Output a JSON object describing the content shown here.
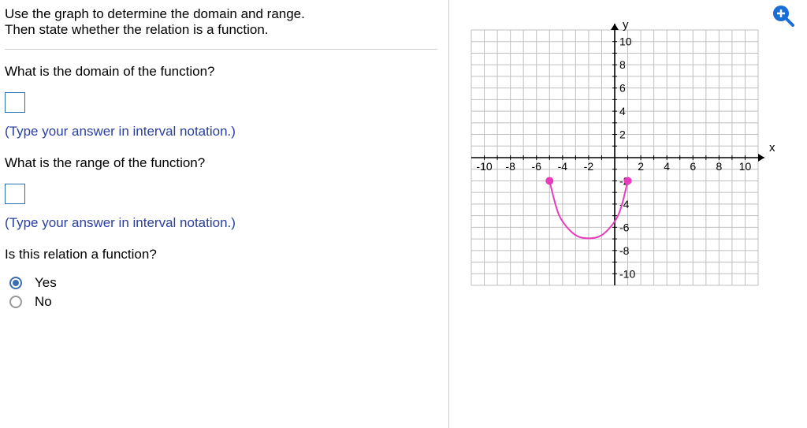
{
  "prompt": {
    "line1": "Use the graph to determine the domain and range.",
    "line2": "Then state whether the relation is a function."
  },
  "q_domain": "What is the domain of the function?",
  "q_range": "What is the range of the function?",
  "hint": "(Type your answer in interval notation.)",
  "q_function": "Is this relation a function?",
  "options": {
    "yes": "Yes",
    "no": "No"
  },
  "selected": "yes",
  "graph": {
    "type": "line",
    "x_axis_label": "x",
    "y_axis_label": "y",
    "xlim": [
      -11,
      11
    ],
    "ylim": [
      -11,
      11
    ],
    "tick_step": 1,
    "xtick_labels": [
      -10,
      -8,
      -6,
      -4,
      -2,
      2,
      4,
      6,
      8,
      10
    ],
    "ytick_labels": [
      10,
      8,
      6,
      4,
      2,
      -2,
      -4,
      -6,
      -8,
      -10
    ],
    "grid_color": "#bfbfbf",
    "axis_color": "#000000",
    "background_color": "#ffffff",
    "tick_label_fontsize": 14,
    "curve": {
      "color": "#e83bbd",
      "stroke_width": 2,
      "endpoints": [
        {
          "x": -5,
          "y": -2,
          "filled": true
        },
        {
          "x": 1,
          "y": -2,
          "filled": true
        }
      ],
      "approx_points": [
        {
          "x": -5,
          "y": -2
        },
        {
          "x": -4.5,
          "y": -4.4
        },
        {
          "x": -4,
          "y": -5.6
        },
        {
          "x": -3,
          "y": -6.8
        },
        {
          "x": -2,
          "y": -7.0
        },
        {
          "x": -1,
          "y": -6.8
        },
        {
          "x": 0,
          "y": -5.6
        },
        {
          "x": 0.5,
          "y": -4.4
        },
        {
          "x": 1,
          "y": -2
        }
      ]
    }
  },
  "zoom_icon": {
    "circle_color": "#1a6fd6",
    "plus_color": "#ffffff"
  }
}
